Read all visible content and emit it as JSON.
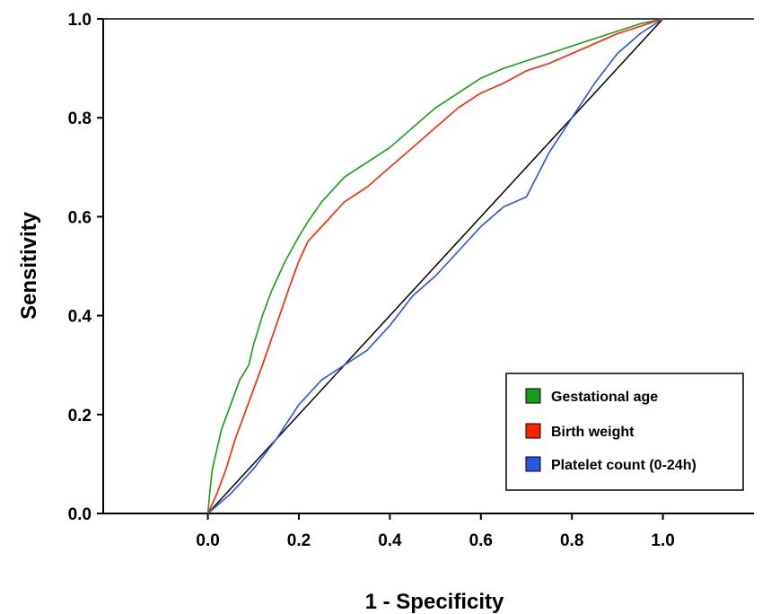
{
  "chart_data": {
    "type": "line",
    "title": "",
    "xlabel": "1 - Specificity",
    "ylabel": "Sensitivity",
    "xlim": [
      -0.23,
      1.2
    ],
    "ylim": [
      0,
      1
    ],
    "x_ticks": [
      "0.0",
      "0.2",
      "0.4",
      "0.6",
      "0.8",
      "1.0"
    ],
    "y_ticks": [
      "0.0",
      "0.2",
      "0.4",
      "0.6",
      "0.8",
      "1.0"
    ],
    "grid": false,
    "legend_position": "bottom-right",
    "reference_line": {
      "x": [
        0,
        1
      ],
      "y": [
        0,
        1
      ],
      "color": "#000000"
    },
    "series": [
      {
        "name": "Gestational age",
        "color": "#1a9a1a",
        "x": [
          0,
          0.005,
          0.01,
          0.02,
          0.03,
          0.05,
          0.07,
          0.09,
          0.1,
          0.12,
          0.14,
          0.17,
          0.2,
          0.22,
          0.25,
          0.3,
          0.35,
          0.4,
          0.45,
          0.5,
          0.55,
          0.6,
          0.65,
          0.7,
          0.75,
          0.8,
          0.85,
          0.9,
          0.95,
          1.0
        ],
        "y": [
          0,
          0.05,
          0.09,
          0.13,
          0.17,
          0.22,
          0.27,
          0.3,
          0.34,
          0.4,
          0.45,
          0.51,
          0.56,
          0.59,
          0.63,
          0.68,
          0.71,
          0.74,
          0.78,
          0.82,
          0.85,
          0.88,
          0.9,
          0.915,
          0.93,
          0.945,
          0.96,
          0.975,
          0.99,
          1.0
        ]
      },
      {
        "name": "Birth weight",
        "color": "#ff2200",
        "x": [
          0,
          0.02,
          0.04,
          0.06,
          0.08,
          0.1,
          0.12,
          0.15,
          0.18,
          0.2,
          0.22,
          0.25,
          0.3,
          0.35,
          0.4,
          0.45,
          0.5,
          0.55,
          0.6,
          0.65,
          0.7,
          0.75,
          0.8,
          0.85,
          0.9,
          0.95,
          1.0
        ],
        "y": [
          0,
          0.04,
          0.09,
          0.15,
          0.2,
          0.25,
          0.3,
          0.38,
          0.46,
          0.51,
          0.55,
          0.58,
          0.63,
          0.66,
          0.7,
          0.74,
          0.78,
          0.82,
          0.85,
          0.87,
          0.895,
          0.91,
          0.93,
          0.95,
          0.97,
          0.985,
          1.0
        ]
      },
      {
        "name": "Platelet count (0-24h)",
        "color": "#2a55e0",
        "x": [
          0,
          0.05,
          0.1,
          0.15,
          0.2,
          0.25,
          0.3,
          0.35,
          0.4,
          0.45,
          0.5,
          0.55,
          0.6,
          0.65,
          0.7,
          0.75,
          0.8,
          0.85,
          0.9,
          0.95,
          1.0
        ],
        "y": [
          0,
          0.04,
          0.09,
          0.15,
          0.22,
          0.27,
          0.3,
          0.33,
          0.38,
          0.44,
          0.48,
          0.53,
          0.58,
          0.62,
          0.64,
          0.73,
          0.8,
          0.87,
          0.93,
          0.97,
          1.0
        ]
      }
    ]
  }
}
